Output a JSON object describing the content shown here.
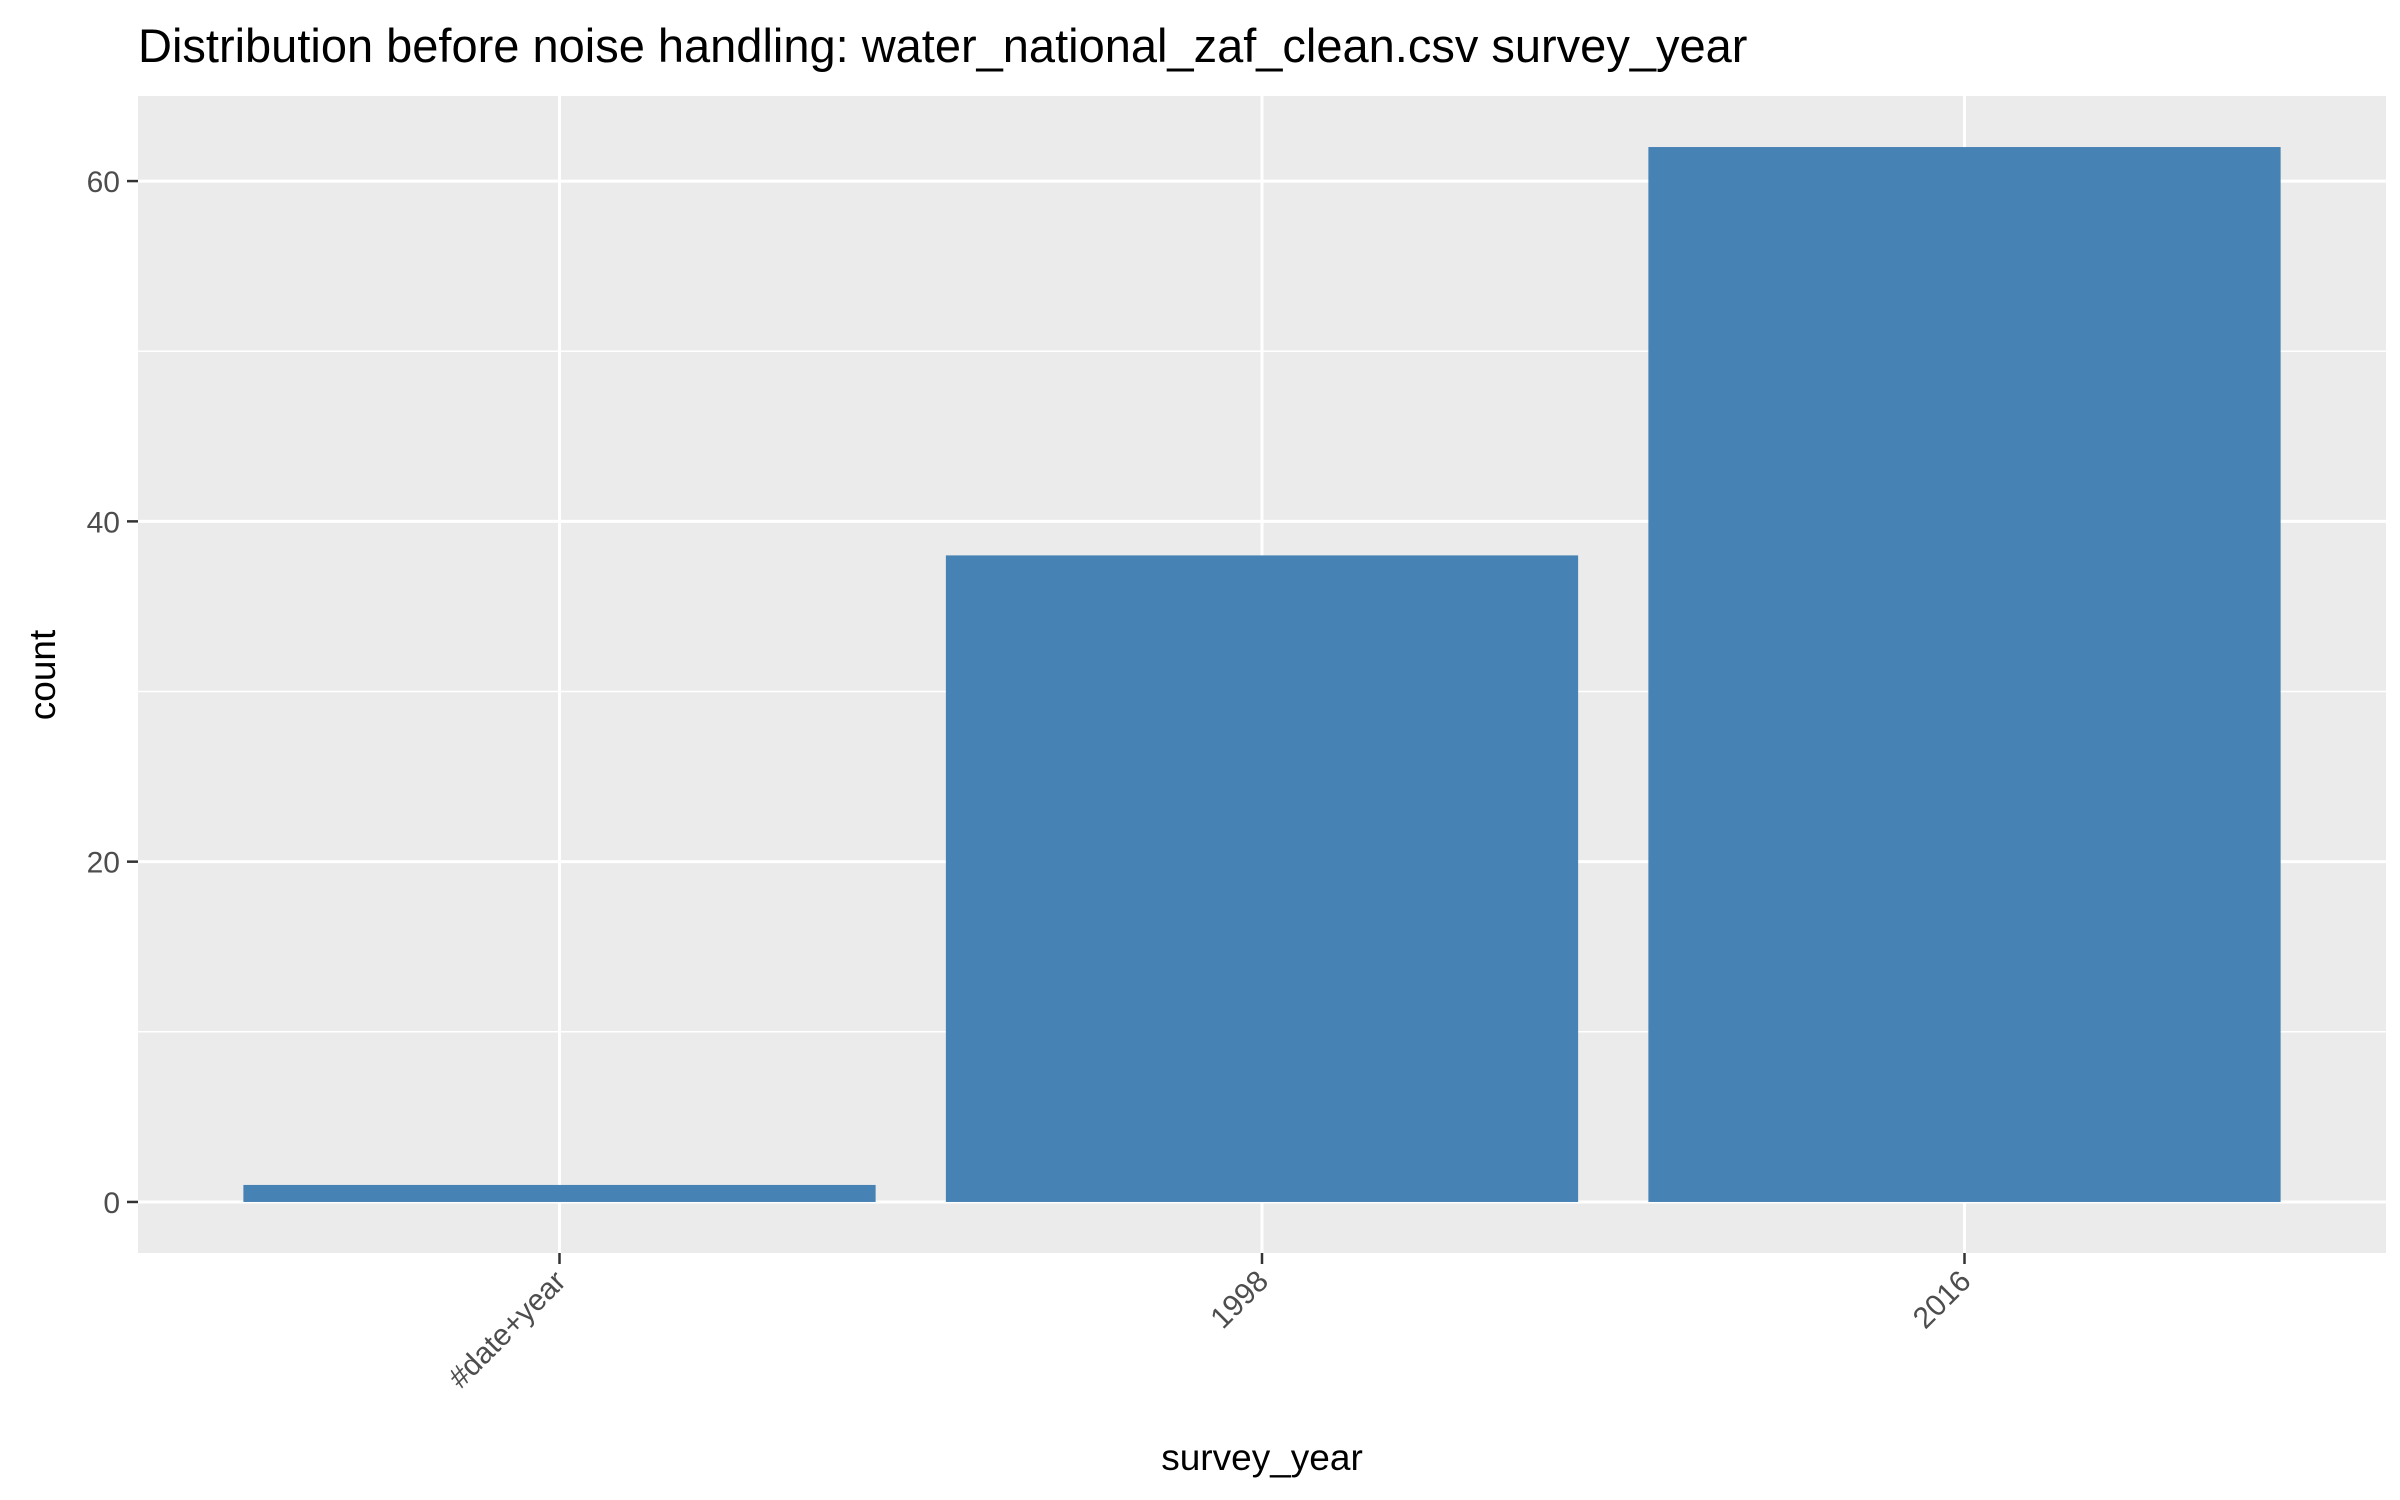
{
  "chart_data": {
    "type": "bar",
    "title": "Distribution before noise handling: water_national_zaf_clean.csv survey_year",
    "xlabel": "survey_year",
    "ylabel": "count",
    "categories": [
      "#date+year",
      "1998",
      "2016"
    ],
    "values": [
      1,
      38,
      62
    ],
    "ylim": [
      -3,
      65
    ],
    "yticks": [
      0,
      20,
      40,
      60
    ],
    "y_minor_ticks": [
      10,
      30,
      50
    ],
    "grid": true,
    "bar_color": "#4682B4",
    "panel_background": "#EBEBEB",
    "grid_color": "#FFFFFF",
    "x_tick_label_rotation": "45 degrees"
  }
}
